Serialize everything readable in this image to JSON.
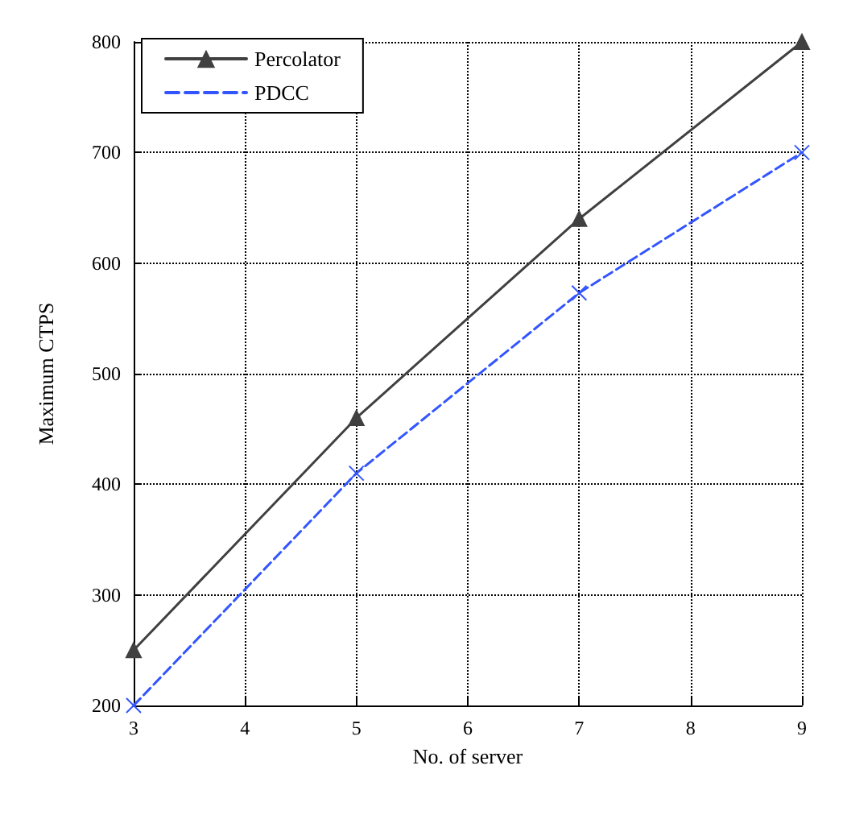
{
  "chart_data": {
    "type": "line",
    "xlabel": "No. of server",
    "ylabel": "Maximum CTPS",
    "x": [
      3,
      5,
      7,
      9
    ],
    "series": [
      {
        "name": "Percolator",
        "color": "#404040",
        "values": [
          250,
          460,
          640,
          800
        ],
        "marker": "triangle",
        "line_style": "solid"
      },
      {
        "name": "PDCC",
        "color": "#3355ff",
        "values": [
          200,
          410,
          573,
          700
        ],
        "marker": "cross",
        "line_style": "dashed"
      }
    ],
    "xlim": [
      3,
      9
    ],
    "xticks": [
      3,
      4,
      5,
      6,
      7,
      8,
      9
    ],
    "ylim": [
      200,
      800
    ],
    "yticks": [
      200,
      300,
      400,
      500,
      600,
      700,
      800
    ],
    "grid": true,
    "legend": "top left"
  }
}
